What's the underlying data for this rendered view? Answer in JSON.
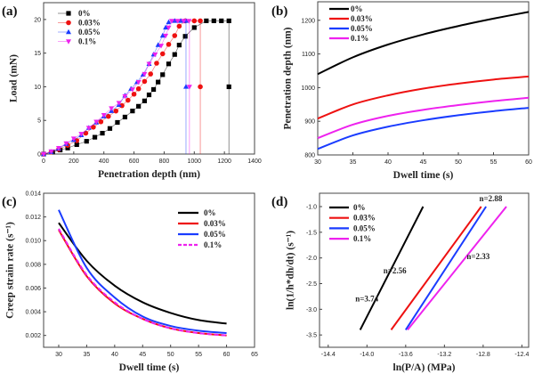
{
  "colors": {
    "0%": "#000000",
    "0.03%": "#ee1111",
    "0.05%": "#1a3cff",
    "0.1%": "#ee22ee"
  },
  "chart_data": [
    {
      "panel": "(a)",
      "type": "scatter",
      "xlabel": "Penetration depth (nm)",
      "ylabel": "Load (mN)",
      "xlim": [
        0,
        1400
      ],
      "ylim": [
        0,
        22.5
      ],
      "xticks": [
        0,
        200,
        400,
        600,
        800,
        1000,
        1200,
        1400
      ],
      "yticks": [
        0,
        5,
        10,
        15,
        20
      ],
      "legend": "top-left",
      "series": [
        {
          "name": "0%",
          "marker": "square",
          "points": [
            [
              0,
              0
            ],
            [
              60,
              0.3
            ],
            [
              110,
              0.6
            ],
            [
              160,
              0.9
            ],
            [
              220,
              1.4
            ],
            [
              285,
              1.9
            ],
            [
              340,
              2.5
            ],
            [
              390,
              3.1
            ],
            [
              440,
              3.8
            ],
            [
              490,
              4.7
            ],
            [
              540,
              5.5
            ],
            [
              590,
              6.4
            ],
            [
              630,
              7.1
            ],
            [
              670,
              7.9
            ],
            [
              700,
              8.8
            ],
            [
              730,
              9.6
            ],
            [
              760,
              10.7
            ],
            [
              790,
              11.8
            ],
            [
              830,
              13.4
            ],
            [
              870,
              14.8
            ],
            [
              900,
              16.2
            ],
            [
              940,
              17.5
            ],
            [
              1000,
              18.8
            ],
            [
              1080,
              19.8
            ],
            [
              1130,
              19.8
            ],
            [
              1180,
              19.8
            ],
            [
              1230,
              19.8
            ]
          ],
          "unload": [
            1230,
            10
          ]
        },
        {
          "name": "0.03%",
          "marker": "circle",
          "points": [
            [
              0,
              0
            ],
            [
              50,
              0.3
            ],
            [
              100,
              0.7
            ],
            [
              160,
              1.3
            ],
            [
              220,
              2.0
            ],
            [
              280,
              3.1
            ],
            [
              330,
              4.0
            ],
            [
              380,
              4.8
            ],
            [
              430,
              5.6
            ],
            [
              480,
              6.4
            ],
            [
              520,
              7.2
            ],
            [
              560,
              8.0
            ],
            [
              600,
              8.9
            ],
            [
              630,
              9.7
            ],
            [
              670,
              10.8
            ],
            [
              710,
              11.9
            ],
            [
              750,
              13.5
            ],
            [
              790,
              14.9
            ],
            [
              830,
              16.3
            ],
            [
              870,
              17.6
            ],
            [
              900,
              19.0
            ],
            [
              940,
              19.8
            ],
            [
              1000,
              19.8
            ],
            [
              1040,
              19.8
            ]
          ],
          "unload": [
            1040,
            10
          ]
        },
        {
          "name": "0.05%",
          "marker": "triangle-up",
          "points": [
            [
              0,
              0
            ],
            [
              50,
              0.3
            ],
            [
              100,
              0.8
            ],
            [
              150,
              1.5
            ],
            [
              200,
              2.1
            ],
            [
              250,
              2.8
            ],
            [
              300,
              3.9
            ],
            [
              350,
              4.7
            ],
            [
              400,
              5.6
            ],
            [
              450,
              6.4
            ],
            [
              500,
              7.3
            ],
            [
              540,
              8.7
            ],
            [
              580,
              9.7
            ],
            [
              620,
              10.7
            ],
            [
              660,
              11.8
            ],
            [
              700,
              13.4
            ],
            [
              730,
              14.8
            ],
            [
              760,
              16.2
            ],
            [
              790,
              17.6
            ],
            [
              810,
              18.8
            ],
            [
              830,
              19.6
            ],
            [
              870,
              19.8
            ],
            [
              910,
              19.8
            ],
            [
              945,
              19.8
            ]
          ],
          "unload": [
            945,
            10
          ]
        },
        {
          "name": "0.1%",
          "marker": "triangle-down",
          "points": [
            [
              0,
              0
            ],
            [
              50,
              0.4
            ],
            [
              100,
              0.9
            ],
            [
              150,
              1.6
            ],
            [
              200,
              2.3
            ],
            [
              250,
              3.0
            ],
            [
              300,
              3.9
            ],
            [
              350,
              4.8
            ],
            [
              400,
              5.8
            ],
            [
              450,
              6.8
            ],
            [
              500,
              7.6
            ],
            [
              540,
              8.6
            ],
            [
              590,
              9.6
            ],
            [
              630,
              10.7
            ],
            [
              670,
              11.9
            ],
            [
              700,
              13.4
            ],
            [
              740,
              14.8
            ],
            [
              780,
              16.1
            ],
            [
              810,
              17.6
            ],
            [
              830,
              18.8
            ],
            [
              850,
              19.8
            ],
            [
              890,
              19.8
            ],
            [
              930,
              19.8
            ],
            [
              965,
              19.8
            ]
          ],
          "unload": [
            968,
            10
          ]
        }
      ]
    },
    {
      "panel": "(b)",
      "type": "line",
      "xlabel": "Dwell time (s)",
      "ylabel": "Penetration depth (nm)",
      "xlim": [
        30,
        60
      ],
      "ylim": [
        800,
        1255
      ],
      "xticks": [
        30,
        35,
        40,
        45,
        50,
        55,
        60
      ],
      "yticks": [
        800,
        900,
        1000,
        1100,
        1200
      ],
      "legend": "top-left",
      "x": [
        30,
        35,
        40,
        45,
        50,
        55,
        60
      ],
      "series": [
        {
          "name": "0%",
          "values": [
            1040,
            1090,
            1128,
            1158,
            1183,
            1205,
            1225
          ]
        },
        {
          "name": "0.03%",
          "values": [
            908,
            950,
            977,
            997,
            1012,
            1024,
            1033
          ]
        },
        {
          "name": "0.05%",
          "values": [
            818,
            858,
            884,
            903,
            918,
            930,
            940
          ]
        },
        {
          "name": "0.1%",
          "values": [
            850,
            890,
            916,
            934,
            948,
            960,
            970
          ]
        }
      ]
    },
    {
      "panel": "(c)",
      "type": "line",
      "xlabel": "Dwell time (s)",
      "ylabel": "Creep strain rate (s⁻¹)",
      "xlim": [
        27.3,
        65
      ],
      "ylim": [
        0.001,
        0.014
      ],
      "xticks": [
        30,
        35,
        40,
        45,
        50,
        55,
        60,
        65
      ],
      "yticks": [
        0.002,
        0.004,
        0.006,
        0.008,
        0.01,
        0.012,
        0.014
      ],
      "ytick_labels": [
        "0.002",
        "0.004",
        "0.006",
        "0.008",
        "0.010",
        "0.012",
        "0.014"
      ],
      "legend": "top-right",
      "x": [
        30,
        35,
        40,
        45,
        50,
        55,
        60
      ],
      "series": [
        {
          "name": "0%",
          "values": [
            0.0115,
            0.0083,
            0.0062,
            0.0048,
            0.0039,
            0.0033,
            0.003
          ]
        },
        {
          "name": "0.03%",
          "values": [
            0.0109,
            0.007,
            0.0047,
            0.0034,
            0.0026,
            0.0022,
            0.002
          ]
        },
        {
          "name": "0.05%",
          "values": [
            0.0126,
            0.0077,
            0.0052,
            0.0036,
            0.0028,
            0.0024,
            0.0022
          ]
        },
        {
          "name": "0.1%",
          "dashed": true,
          "values": [
            0.011,
            0.0071,
            0.0048,
            0.0034,
            0.0026,
            0.0022,
            0.002
          ]
        }
      ]
    },
    {
      "panel": "(d)",
      "type": "line",
      "xlabel": "ln(P/A) (MPa)",
      "ylabel": "ln(1/h*dh/dt) (s⁻¹)",
      "xlim": [
        -14.49,
        -12.33
      ],
      "ylim": [
        -3.74,
        -0.74
      ],
      "xticks": [
        -14.4,
        -14.0,
        -13.6,
        -13.2,
        -12.8,
        -12.4
      ],
      "xtick_labels": [
        "-14.4",
        "-14.0",
        "-13.6",
        "-13.2",
        "-12.8",
        "-12.4"
      ],
      "yticks": [
        -3.5,
        -3.0,
        -2.5,
        -2.0,
        -1.5,
        -1.0
      ],
      "ytick_labels": [
        "-3.5",
        "-3.0",
        "-2.5",
        "-2.0",
        "-1.5",
        "-1.0"
      ],
      "legend": "top-left",
      "series": [
        {
          "name": "0%",
          "points": [
            [
              -14.07,
              -3.4
            ],
            [
              -13.42,
              -1.0
            ]
          ],
          "label": "n=3.74",
          "label_at": [
            -14.12,
            -2.85
          ]
        },
        {
          "name": "0.03%",
          "points": [
            [
              -13.75,
              -3.4
            ],
            [
              -12.82,
              -1.0
            ]
          ],
          "label": "n=2.56",
          "label_at": [
            -13.83,
            -2.3
          ]
        },
        {
          "name": "0.05%",
          "points": [
            [
              -13.6,
              -3.4
            ],
            [
              -12.77,
              -1.0
            ]
          ],
          "label": "n=2.88",
          "label_at": [
            -12.84,
            -0.9
          ]
        },
        {
          "name": "0.1%",
          "points": [
            [
              -13.58,
              -3.4
            ],
            [
              -12.56,
              -1.0
            ]
          ],
          "label": "n=2.33",
          "label_at": [
            -12.97,
            -2.02
          ]
        }
      ]
    }
  ]
}
